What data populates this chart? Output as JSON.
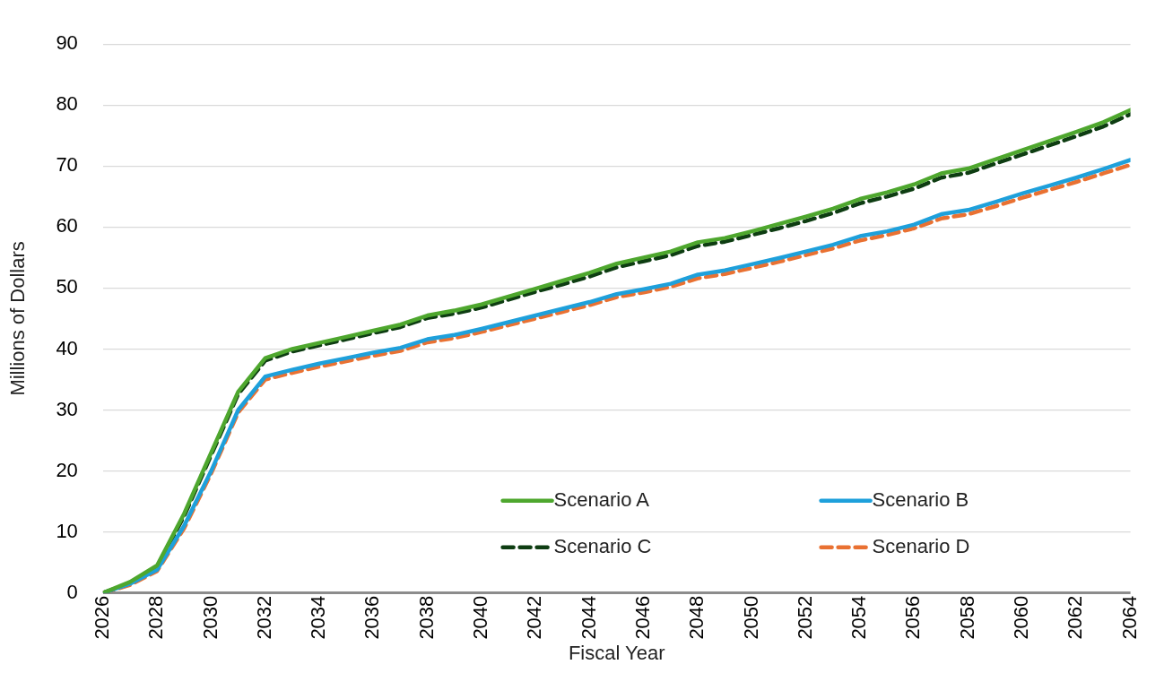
{
  "chart_data": {
    "type": "line",
    "xlabel": "Fiscal Year",
    "ylabel": "Millions of Dollars",
    "x": [
      2026,
      2027,
      2028,
      2029,
      2030,
      2031,
      2032,
      2033,
      2034,
      2035,
      2036,
      2037,
      2038,
      2039,
      2040,
      2041,
      2042,
      2043,
      2044,
      2045,
      2046,
      2047,
      2048,
      2049,
      2050,
      2051,
      2052,
      2053,
      2054,
      2055,
      2056,
      2057,
      2058,
      2059,
      2060,
      2061,
      2062,
      2063,
      2064
    ],
    "xlim": [
      2026,
      2064
    ],
    "xticks": [
      2026,
      2028,
      2030,
      2032,
      2034,
      2036,
      2038,
      2040,
      2042,
      2044,
      2046,
      2048,
      2050,
      2052,
      2054,
      2056,
      2058,
      2060,
      2062,
      2064
    ],
    "ylim": [
      0,
      90
    ],
    "yticks": [
      0,
      10,
      20,
      30,
      40,
      50,
      60,
      70,
      80,
      90
    ],
    "grid": "y",
    "legend": "bottom right",
    "marker": "none",
    "series": [
      {
        "name": "Scenario A",
        "color": "#4ea72e",
        "line_style": "solid",
        "values": [
          0,
          1.8,
          4.5,
          13,
          23,
          33,
          38.5,
          40,
          41,
          42,
          43,
          44,
          45.5,
          46.3,
          47.3,
          48.6,
          49.9,
          51.2,
          52.5,
          54,
          55,
          56,
          57.5,
          58.2,
          59.3,
          60.5,
          61.7,
          63,
          64.6,
          65.7,
          67,
          68.8,
          69.6,
          71.1,
          72.6,
          74.1,
          75.6,
          77.2,
          79.2
        ]
      },
      {
        "name": "Scenario B",
        "color": "#1ea0db",
        "line_style": "solid",
        "values": [
          0,
          1.5,
          3.8,
          11,
          20,
          30,
          35.5,
          36.6,
          37.6,
          38.5,
          39.4,
          40.2,
          41.6,
          42.3,
          43.3,
          44.4,
          45.5,
          46.6,
          47.7,
          49,
          49.8,
          50.7,
          52.2,
          52.9,
          53.9,
          54.9,
          56,
          57.1,
          58.5,
          59.3,
          60.4,
          62.1,
          62.8,
          64.1,
          65.5,
          66.8,
          68.1,
          69.5,
          71
        ]
      },
      {
        "name": "Scenario C",
        "color": "#0e3d12",
        "line_style": "dashed",
        "values": [
          0,
          1.6,
          4.3,
          12.6,
          22.6,
          32.6,
          38.1,
          39.6,
          40.6,
          41.6,
          42.6,
          43.6,
          45.1,
          45.8,
          46.8,
          48.1,
          49.4,
          50.6,
          51.9,
          53.4,
          54.4,
          55.4,
          56.9,
          57.6,
          58.7,
          59.8,
          61,
          62.3,
          63.9,
          65,
          66.3,
          68.1,
          68.9,
          70.4,
          71.9,
          73.4,
          74.9,
          76.5,
          78.5
        ]
      },
      {
        "name": "Scenario D",
        "color": "#e97132",
        "line_style": "dashed",
        "values": [
          0,
          1.3,
          3.6,
          10.6,
          19.6,
          29.6,
          35,
          36.1,
          37.1,
          38,
          38.9,
          39.7,
          41.1,
          41.8,
          42.8,
          43.9,
          45,
          46.1,
          47.2,
          48.5,
          49.3,
          50.2,
          51.6,
          52.3,
          53.3,
          54.3,
          55.4,
          56.5,
          57.8,
          58.7,
          59.8,
          61.4,
          62.1,
          63.4,
          64.8,
          66.1,
          67.4,
          68.8,
          70.2
        ]
      }
    ]
  }
}
